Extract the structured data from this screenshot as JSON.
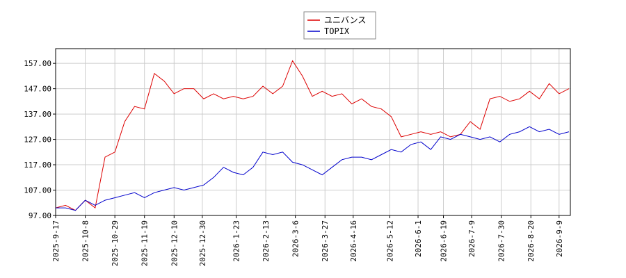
{
  "chart_data": {
    "type": "line",
    "x": [
      "2025-9-17",
      "2025-9-24",
      "2025-10-1",
      "2025-10-8",
      "2025-10-15",
      "2025-10-22",
      "2025-10-29",
      "2025-11-5",
      "2025-11-12",
      "2025-11-19",
      "2025-11-26",
      "2025-12-3",
      "2025-12-10",
      "2025-12-17",
      "2025-12-24",
      "2025-12-31",
      "2026-1-7",
      "2026-1-14",
      "2026-1-21",
      "2026-1-28",
      "2026-2-4",
      "2026-2-11",
      "2026-2-18",
      "2026-2-25",
      "2026-3-4",
      "2026-3-11",
      "2026-3-18",
      "2026-3-25",
      "2026-4-1",
      "2026-4-8",
      "2026-4-15",
      "2026-4-22",
      "2026-4-29",
      "2026-5-6",
      "2026-5-13",
      "2026-5-20",
      "2026-5-27",
      "2026-6-3",
      "2026-6-10",
      "2026-6-17",
      "2026-6-24",
      "2026-7-1",
      "2026-7-8",
      "2026-7-15",
      "2026-7-22",
      "2026-7-29",
      "2026-8-5",
      "2026-8-12",
      "2026-8-19",
      "2026-8-26",
      "2026-9-2",
      "2026-9-9",
      "2026-9-16"
    ],
    "series": [
      {
        "name": "ユニバンス",
        "color": "#dd0000",
        "values": [
          100,
          101,
          99,
          103,
          100,
          120,
          122,
          134,
          140,
          139,
          153,
          150,
          145,
          147,
          147,
          143,
          145,
          143,
          144,
          143,
          144,
          148,
          145,
          148,
          158,
          152,
          144,
          146,
          144,
          145,
          141,
          143,
          140,
          139,
          136,
          128,
          129,
          130,
          129,
          130,
          128,
          129,
          134,
          131,
          143,
          144,
          142,
          143,
          146,
          143,
          149,
          145,
          147
        ]
      },
      {
        "name": "TOPIX",
        "color": "#0000cc",
        "values": [
          100,
          100,
          99,
          103,
          101,
          103,
          104,
          105,
          106,
          104,
          106,
          107,
          108,
          107,
          108,
          109,
          112,
          116,
          114,
          113,
          116,
          122,
          121,
          122,
          118,
          117,
          115,
          113,
          116,
          119,
          120,
          120,
          119,
          121,
          123,
          122,
          125,
          126,
          123,
          128,
          127,
          129,
          128,
          127,
          128,
          126,
          129,
          130,
          132,
          130,
          131,
          129,
          130
        ]
      }
    ],
    "xlim": [
      "2025-9-17",
      "2026-9-17"
    ],
    "xticks": [
      "2025-9-17",
      "2025-10-8",
      "2025-10-29",
      "2025-11-19",
      "2025-12-10",
      "2025-12-30",
      "2026-1-23",
      "2026-2-13",
      "2026-3-6",
      "2026-3-27",
      "2026-4-16",
      "2026-5-12",
      "2026-6-1",
      "2026-6-19",
      "2026-7-9",
      "2026-7-30",
      "2026-8-20",
      "2026-9-9"
    ],
    "ylim": [
      97,
      162.8
    ],
    "yticks": [
      {
        "value": 97,
        "label": "97.00"
      },
      {
        "value": 107,
        "label": "107.00"
      },
      {
        "value": 117,
        "label": "117.00"
      },
      {
        "value": 127,
        "label": "127.00"
      },
      {
        "value": 137,
        "label": "137.00"
      },
      {
        "value": 147,
        "label": "147.00"
      },
      {
        "value": 157,
        "label": "157.00"
      }
    ],
    "grid": true,
    "legend": "top"
  }
}
